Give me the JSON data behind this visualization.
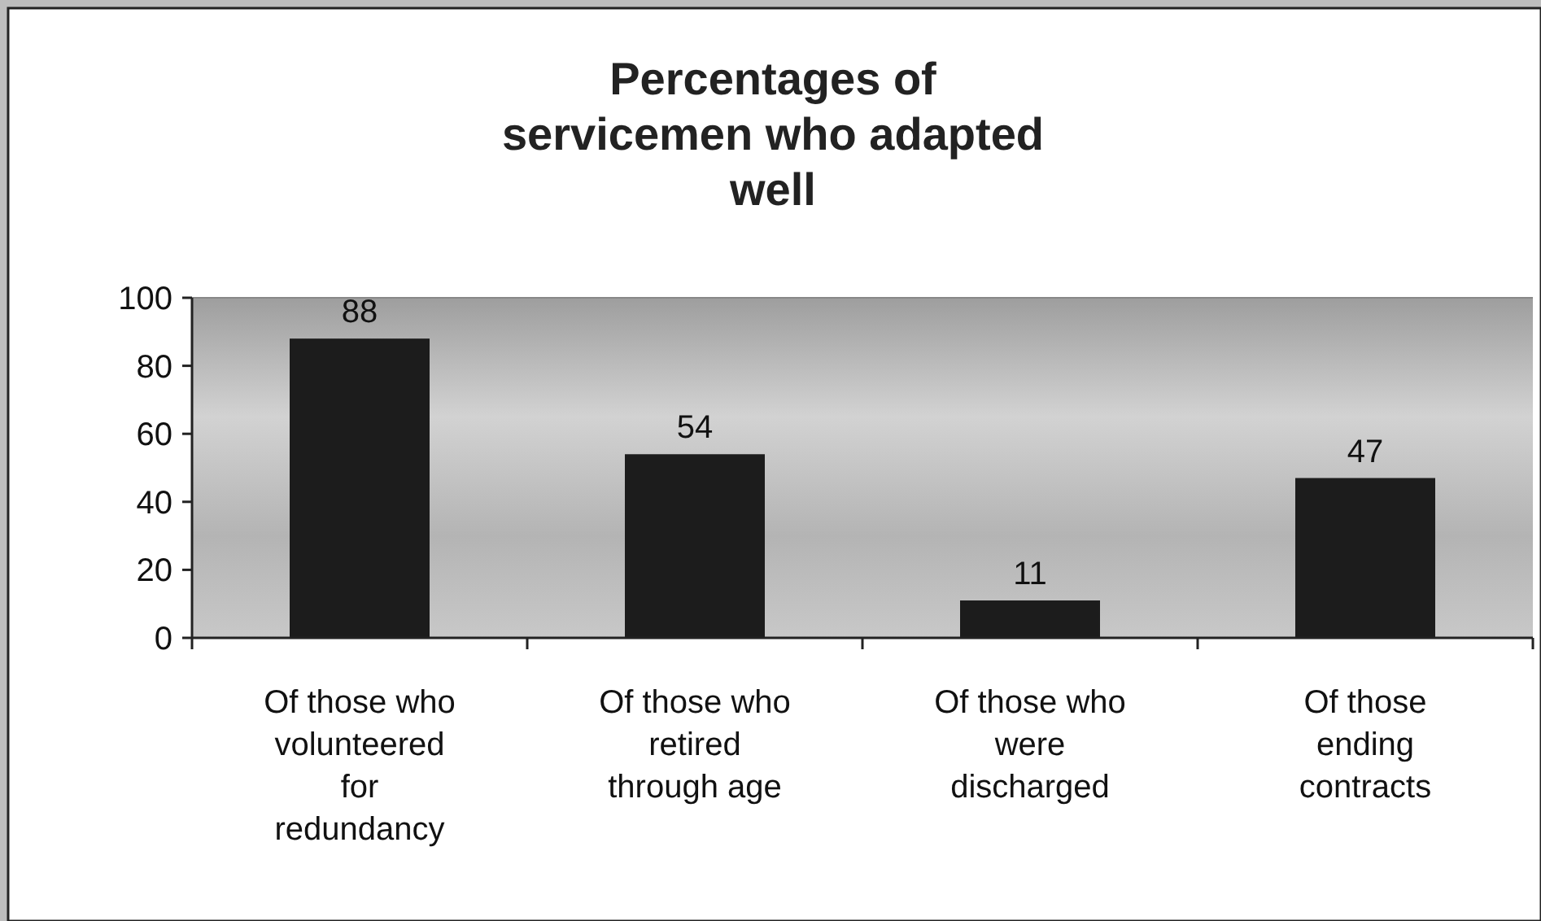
{
  "chart_data": {
    "type": "bar",
    "title": "Percentages of servicemen who adapted well",
    "categories": [
      "Of those who volunteered for redundancy",
      "Of those who retired through age",
      "Of those who were discharged",
      "Of those ending contracts"
    ],
    "values": [
      88,
      54,
      11,
      47
    ],
    "color": "#1c1c1c",
    "ylim": [
      0,
      100
    ],
    "yticks": [
      0,
      20,
      40,
      60,
      80,
      100
    ],
    "data_labels": true
  }
}
